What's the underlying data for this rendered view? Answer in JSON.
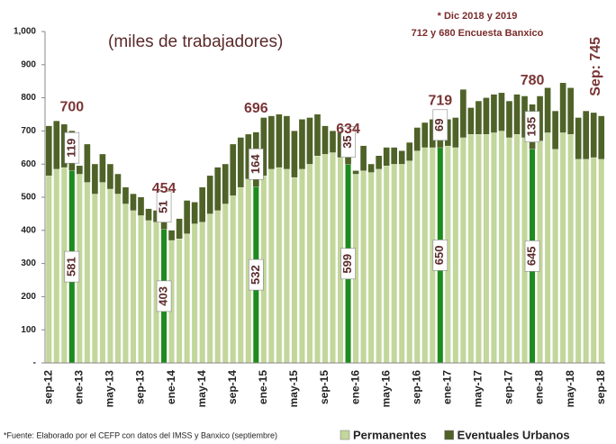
{
  "chart_data": {
    "type": "stacked_bar",
    "subtitle": "(miles de trabajadores)",
    "note": [
      "* Dic 2018 y 2019",
      "712 y 680 Encuesta Banxico"
    ],
    "source": "*Fuente: Elaborado por el CEFP con datos del IMSS y Banxico (septiembre)",
    "categories": [
      "sep-12",
      null,
      null,
      null,
      "ene-13",
      null,
      null,
      null,
      "may-13",
      null,
      null,
      null,
      "sep-13",
      null,
      null,
      null,
      "ene-14",
      null,
      null,
      null,
      "may-14",
      null,
      null,
      null,
      "sep-14",
      null,
      null,
      null,
      "ene-15",
      null,
      null,
      null,
      "may-15",
      null,
      null,
      null,
      "sep-15",
      null,
      null,
      null,
      "ene-16",
      null,
      null,
      null,
      "may-16",
      null,
      null,
      null,
      "sep-16",
      null,
      null,
      null,
      "ene-17",
      null,
      null,
      null,
      "may-17",
      null,
      null,
      null,
      "sep-17",
      null,
      null,
      null,
      "ene-18",
      null,
      null,
      null,
      "may-18",
      null,
      null,
      null,
      "sep-18"
    ],
    "series": [
      {
        "name": "Permanentes",
        "color": "#c3d69b",
        "values": [
          565,
          585,
          590,
          581,
          570,
          545,
          510,
          545,
          525,
          510,
          480,
          460,
          445,
          430,
          425,
          403,
          370,
          375,
          390,
          420,
          425,
          450,
          460,
          480,
          505,
          530,
          555,
          532,
          565,
          585,
          590,
          585,
          560,
          585,
          600,
          625,
          630,
          635,
          620,
          599,
          570,
          580,
          575,
          585,
          595,
          600,
          600,
          610,
          640,
          650,
          650,
          650,
          655,
          650,
          680,
          690,
          690,
          690,
          695,
          700,
          680,
          690,
          680,
          645,
          670,
          695,
          645,
          695,
          690,
          615,
          615,
          620,
          615
        ]
      },
      {
        "name": "Eventuales Urbanos",
        "color": "#4f6228",
        "values": [
          150,
          145,
          130,
          119,
          25,
          115,
          90,
          85,
          75,
          60,
          50,
          50,
          55,
          35,
          35,
          51,
          30,
          60,
          100,
          65,
          105,
          115,
          130,
          120,
          155,
          150,
          135,
          164,
          175,
          160,
          160,
          160,
          140,
          150,
          140,
          125,
          85,
          65,
          75,
          35,
          10,
          75,
          25,
          40,
          55,
          50,
          40,
          55,
          70,
          75,
          85,
          69,
          80,
          90,
          145,
          80,
          100,
          110,
          115,
          115,
          110,
          120,
          125,
          135,
          135,
          135,
          115,
          150,
          140,
          125,
          145,
          135,
          130
        ]
      }
    ],
    "highlight": [
      3,
      15,
      27,
      39,
      51,
      63
    ],
    "highlight_color": "#1e8b1e",
    "total_labels": [
      null,
      null,
      null,
      "700",
      null,
      null,
      null,
      null,
      null,
      null,
      null,
      null,
      null,
      null,
      null,
      "454",
      null,
      null,
      null,
      null,
      null,
      null,
      null,
      null,
      null,
      null,
      null,
      "696",
      null,
      null,
      null,
      null,
      null,
      null,
      null,
      null,
      null,
      null,
      null,
      "634",
      null,
      null,
      null,
      null,
      null,
      null,
      null,
      null,
      null,
      null,
      null,
      "719",
      null,
      null,
      null,
      null,
      null,
      null,
      null,
      null,
      null,
      null,
      null,
      "780",
      null,
      null,
      null,
      null,
      null,
      null,
      null,
      null,
      "Sep: 745"
    ],
    "ylim": [
      0,
      1000
    ],
    "yticks": [
      {
        "value": 0,
        "label": "-"
      },
      100,
      200,
      300,
      400,
      500,
      600,
      700,
      800,
      900,
      {
        "value": 1000,
        "label": "1,000"
      }
    ]
  }
}
